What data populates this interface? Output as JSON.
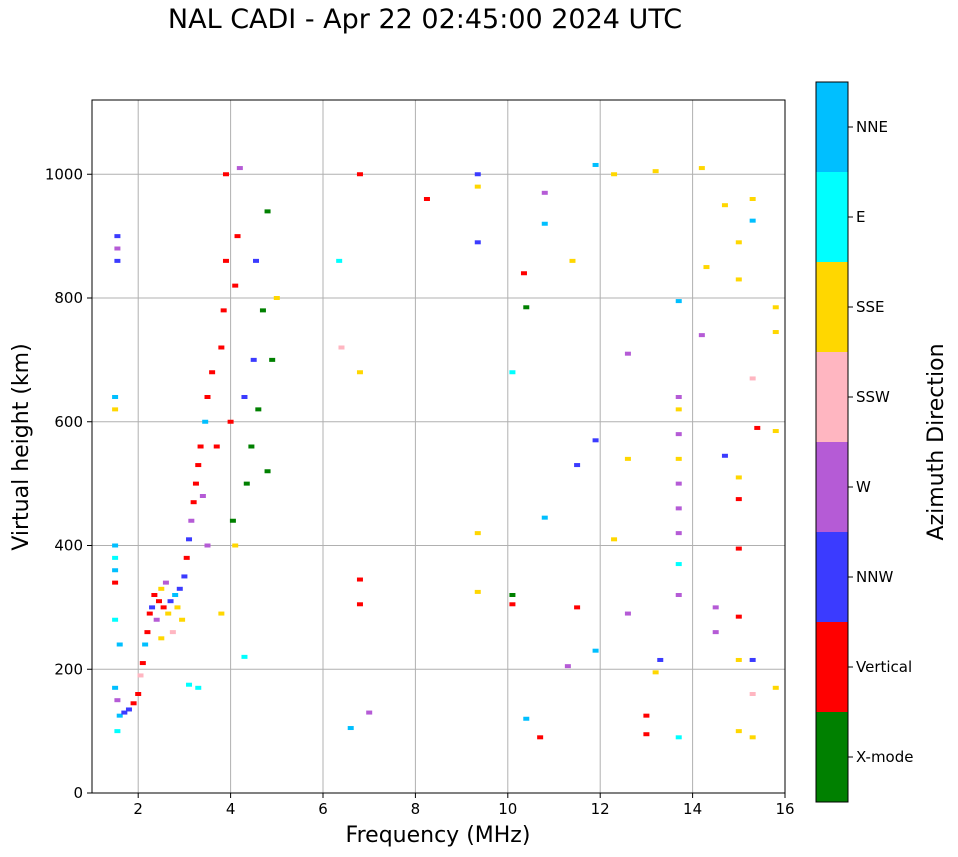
{
  "chart_data": {
    "type": "scatter",
    "title": "NAL CADI - Apr 22 02:45:00 2024 UTC",
    "xlabel": "Frequency (MHz)",
    "ylabel": "Virtual height (km)",
    "xlim": [
      1,
      16
    ],
    "ylim": [
      0,
      1120
    ],
    "xticks": [
      2,
      4,
      6,
      8,
      10,
      12,
      14,
      16
    ],
    "yticks": [
      0,
      200,
      400,
      600,
      800,
      1000
    ],
    "grid": true,
    "colorbar": {
      "label": "Azimuth Direction",
      "categories": [
        {
          "name": "X-mode",
          "color": "#008000"
        },
        {
          "name": "Vertical",
          "color": "#ff0000"
        },
        {
          "name": "NNW",
          "color": "#3b3bff"
        },
        {
          "name": "W",
          "color": "#b55bd6"
        },
        {
          "name": "SSW",
          "color": "#ffb6c1"
        },
        {
          "name": "SSE",
          "color": "#ffd700"
        },
        {
          "name": "E",
          "color": "#00ffff"
        },
        {
          "name": "NNE",
          "color": "#00bfff"
        }
      ]
    },
    "points": [
      {
        "f": 1.55,
        "h": 900,
        "c": "NNW"
      },
      {
        "f": 1.55,
        "h": 880,
        "c": "W"
      },
      {
        "f": 1.55,
        "h": 860,
        "c": "NNW"
      },
      {
        "f": 1.5,
        "h": 640,
        "c": "NNE"
      },
      {
        "f": 1.5,
        "h": 620,
        "c": "SSE"
      },
      {
        "f": 1.5,
        "h": 400,
        "c": "NNE"
      },
      {
        "f": 1.5,
        "h": 380,
        "c": "E"
      },
      {
        "f": 1.5,
        "h": 360,
        "c": "NNE"
      },
      {
        "f": 1.5,
        "h": 340,
        "c": "Vertical"
      },
      {
        "f": 1.5,
        "h": 280,
        "c": "E"
      },
      {
        "f": 1.6,
        "h": 240,
        "c": "NNE"
      },
      {
        "f": 1.5,
        "h": 170,
        "c": "NNE"
      },
      {
        "f": 1.55,
        "h": 150,
        "c": "W"
      },
      {
        "f": 1.6,
        "h": 125,
        "c": "NNE"
      },
      {
        "f": 1.7,
        "h": 130,
        "c": "NNW"
      },
      {
        "f": 1.8,
        "h": 135,
        "c": "NNW"
      },
      {
        "f": 1.9,
        "h": 145,
        "c": "Vertical"
      },
      {
        "f": 1.55,
        "h": 100,
        "c": "E"
      },
      {
        "f": 2.0,
        "h": 160,
        "c": "Vertical"
      },
      {
        "f": 2.05,
        "h": 190,
        "c": "SSW"
      },
      {
        "f": 2.1,
        "h": 210,
        "c": "Vertical"
      },
      {
        "f": 2.15,
        "h": 240,
        "c": "NNE"
      },
      {
        "f": 2.2,
        "h": 260,
        "c": "Vertical"
      },
      {
        "f": 2.25,
        "h": 290,
        "c": "Vertical"
      },
      {
        "f": 2.3,
        "h": 300,
        "c": "NNW"
      },
      {
        "f": 2.35,
        "h": 320,
        "c": "Vertical"
      },
      {
        "f": 2.4,
        "h": 280,
        "c": "W"
      },
      {
        "f": 2.45,
        "h": 310,
        "c": "Vertical"
      },
      {
        "f": 2.5,
        "h": 330,
        "c": "SSE"
      },
      {
        "f": 2.5,
        "h": 250,
        "c": "SSE"
      },
      {
        "f": 2.55,
        "h": 300,
        "c": "Vertical"
      },
      {
        "f": 2.6,
        "h": 340,
        "c": "W"
      },
      {
        "f": 2.65,
        "h": 290,
        "c": "SSE"
      },
      {
        "f": 2.7,
        "h": 310,
        "c": "NNW"
      },
      {
        "f": 2.75,
        "h": 260,
        "c": "SSW"
      },
      {
        "f": 2.8,
        "h": 320,
        "c": "NNE"
      },
      {
        "f": 2.85,
        "h": 300,
        "c": "SSE"
      },
      {
        "f": 2.9,
        "h": 330,
        "c": "NNW"
      },
      {
        "f": 2.95,
        "h": 280,
        "c": "SSE"
      },
      {
        "f": 3.0,
        "h": 350,
        "c": "NNW"
      },
      {
        "f": 3.05,
        "h": 380,
        "c": "Vertical"
      },
      {
        "f": 3.1,
        "h": 410,
        "c": "NNW"
      },
      {
        "f": 3.15,
        "h": 440,
        "c": "W"
      },
      {
        "f": 3.2,
        "h": 470,
        "c": "Vertical"
      },
      {
        "f": 3.25,
        "h": 500,
        "c": "Vertical"
      },
      {
        "f": 3.3,
        "h": 530,
        "c": "Vertical"
      },
      {
        "f": 3.35,
        "h": 560,
        "c": "Vertical"
      },
      {
        "f": 3.4,
        "h": 480,
        "c": "W"
      },
      {
        "f": 3.45,
        "h": 600,
        "c": "NNE"
      },
      {
        "f": 3.5,
        "h": 640,
        "c": "Vertical"
      },
      {
        "f": 3.5,
        "h": 400,
        "c": "W"
      },
      {
        "f": 3.6,
        "h": 680,
        "c": "Vertical"
      },
      {
        "f": 3.7,
        "h": 560,
        "c": "Vertical"
      },
      {
        "f": 3.8,
        "h": 720,
        "c": "Vertical"
      },
      {
        "f": 3.8,
        "h": 290,
        "c": "SSE"
      },
      {
        "f": 3.85,
        "h": 780,
        "c": "Vertical"
      },
      {
        "f": 3.9,
        "h": 860,
        "c": "Vertical"
      },
      {
        "f": 3.9,
        "h": 1000,
        "c": "Vertical"
      },
      {
        "f": 4.0,
        "h": 600,
        "c": "Vertical"
      },
      {
        "f": 4.05,
        "h": 440,
        "c": "X-mode"
      },
      {
        "f": 4.1,
        "h": 400,
        "c": "SSE"
      },
      {
        "f": 4.1,
        "h": 820,
        "c": "Vertical"
      },
      {
        "f": 4.15,
        "h": 900,
        "c": "Vertical"
      },
      {
        "f": 4.2,
        "h": 1010,
        "c": "W"
      },
      {
        "f": 4.3,
        "h": 640,
        "c": "NNW"
      },
      {
        "f": 4.35,
        "h": 500,
        "c": "X-mode"
      },
      {
        "f": 4.45,
        "h": 560,
        "c": "X-mode"
      },
      {
        "f": 4.5,
        "h": 700,
        "c": "NNW"
      },
      {
        "f": 4.55,
        "h": 860,
        "c": "NNW"
      },
      {
        "f": 4.6,
        "h": 620,
        "c": "X-mode"
      },
      {
        "f": 4.7,
        "h": 780,
        "c": "X-mode"
      },
      {
        "f": 4.8,
        "h": 520,
        "c": "X-mode"
      },
      {
        "f": 4.8,
        "h": 940,
        "c": "X-mode"
      },
      {
        "f": 4.9,
        "h": 700,
        "c": "X-mode"
      },
      {
        "f": 5.0,
        "h": 800,
        "c": "SSE"
      },
      {
        "f": 3.3,
        "h": 170,
        "c": "E"
      },
      {
        "f": 3.1,
        "h": 175,
        "c": "E"
      },
      {
        "f": 4.3,
        "h": 220,
        "c": "E"
      },
      {
        "f": 6.35,
        "h": 860,
        "c": "E"
      },
      {
        "f": 6.8,
        "h": 1000,
        "c": "Vertical"
      },
      {
        "f": 6.8,
        "h": 345,
        "c": "Vertical"
      },
      {
        "f": 6.8,
        "h": 305,
        "c": "Vertical"
      },
      {
        "f": 6.8,
        "h": 680,
        "c": "SSE"
      },
      {
        "f": 6.4,
        "h": 720,
        "c": "SSW"
      },
      {
        "f": 6.6,
        "h": 105,
        "c": "NNE"
      },
      {
        "f": 7.0,
        "h": 130,
        "c": "W"
      },
      {
        "f": 8.25,
        "h": 960,
        "c": "Vertical"
      },
      {
        "f": 9.35,
        "h": 1000,
        "c": "NNW"
      },
      {
        "f": 9.35,
        "h": 980,
        "c": "SSE"
      },
      {
        "f": 9.35,
        "h": 890,
        "c": "NNW"
      },
      {
        "f": 9.35,
        "h": 420,
        "c": "SSE"
      },
      {
        "f": 9.35,
        "h": 325,
        "c": "SSE"
      },
      {
        "f": 10.1,
        "h": 320,
        "c": "X-mode"
      },
      {
        "f": 10.1,
        "h": 305,
        "c": "Vertical"
      },
      {
        "f": 10.35,
        "h": 840,
        "c": "Vertical"
      },
      {
        "f": 10.4,
        "h": 785,
        "c": "X-mode"
      },
      {
        "f": 10.1,
        "h": 680,
        "c": "E"
      },
      {
        "f": 10.8,
        "h": 920,
        "c": "NNE"
      },
      {
        "f": 10.8,
        "h": 970,
        "c": "W"
      },
      {
        "f": 10.8,
        "h": 445,
        "c": "NNE"
      },
      {
        "f": 10.7,
        "h": 90,
        "c": "Vertical"
      },
      {
        "f": 10.4,
        "h": 120,
        "c": "NNE"
      },
      {
        "f": 11.4,
        "h": 860,
        "c": "SSE"
      },
      {
        "f": 11.5,
        "h": 530,
        "c": "NNW"
      },
      {
        "f": 11.5,
        "h": 300,
        "c": "Vertical"
      },
      {
        "f": 11.3,
        "h": 205,
        "c": "W"
      },
      {
        "f": 11.9,
        "h": 1015,
        "c": "NNE"
      },
      {
        "f": 11.9,
        "h": 570,
        "c": "NNW"
      },
      {
        "f": 11.9,
        "h": 230,
        "c": "NNE"
      },
      {
        "f": 12.3,
        "h": 1000,
        "c": "SSE"
      },
      {
        "f": 12.3,
        "h": 410,
        "c": "SSE"
      },
      {
        "f": 12.6,
        "h": 710,
        "c": "W"
      },
      {
        "f": 12.6,
        "h": 540,
        "c": "SSE"
      },
      {
        "f": 12.6,
        "h": 290,
        "c": "W"
      },
      {
        "f": 13.0,
        "h": 125,
        "c": "Vertical"
      },
      {
        "f": 13.0,
        "h": 95,
        "c": "Vertical"
      },
      {
        "f": 13.2,
        "h": 1005,
        "c": "SSE"
      },
      {
        "f": 13.3,
        "h": 215,
        "c": "NNW"
      },
      {
        "f": 13.2,
        "h": 195,
        "c": "SSE"
      },
      {
        "f": 13.7,
        "h": 795,
        "c": "NNE"
      },
      {
        "f": 13.7,
        "h": 640,
        "c": "W"
      },
      {
        "f": 13.7,
        "h": 620,
        "c": "SSE"
      },
      {
        "f": 13.7,
        "h": 580,
        "c": "W"
      },
      {
        "f": 13.7,
        "h": 540,
        "c": "SSE"
      },
      {
        "f": 13.7,
        "h": 500,
        "c": "W"
      },
      {
        "f": 13.7,
        "h": 460,
        "c": "W"
      },
      {
        "f": 13.7,
        "h": 420,
        "c": "W"
      },
      {
        "f": 13.7,
        "h": 370,
        "c": "E"
      },
      {
        "f": 13.7,
        "h": 320,
        "c": "W"
      },
      {
        "f": 13.7,
        "h": 90,
        "c": "E"
      },
      {
        "f": 14.2,
        "h": 1010,
        "c": "SSE"
      },
      {
        "f": 14.3,
        "h": 850,
        "c": "SSE"
      },
      {
        "f": 14.2,
        "h": 740,
        "c": "W"
      },
      {
        "f": 14.5,
        "h": 300,
        "c": "W"
      },
      {
        "f": 14.5,
        "h": 260,
        "c": "W"
      },
      {
        "f": 14.7,
        "h": 950,
        "c": "SSE"
      },
      {
        "f": 14.7,
        "h": 545,
        "c": "NNW"
      },
      {
        "f": 15.0,
        "h": 890,
        "c": "SSE"
      },
      {
        "f": 15.0,
        "h": 830,
        "c": "SSE"
      },
      {
        "f": 15.0,
        "h": 510,
        "c": "SSE"
      },
      {
        "f": 15.0,
        "h": 475,
        "c": "Vertical"
      },
      {
        "f": 15.0,
        "h": 395,
        "c": "Vertical"
      },
      {
        "f": 15.0,
        "h": 285,
        "c": "Vertical"
      },
      {
        "f": 15.0,
        "h": 215,
        "c": "SSE"
      },
      {
        "f": 15.0,
        "h": 100,
        "c": "SSE"
      },
      {
        "f": 15.3,
        "h": 960,
        "c": "SSE"
      },
      {
        "f": 15.3,
        "h": 925,
        "c": "NNE"
      },
      {
        "f": 15.3,
        "h": 215,
        "c": "NNW"
      },
      {
        "f": 15.3,
        "h": 90,
        "c": "SSE"
      },
      {
        "f": 15.4,
        "h": 590,
        "c": "Vertical"
      },
      {
        "f": 15.3,
        "h": 670,
        "c": "SSW"
      },
      {
        "f": 15.3,
        "h": 160,
        "c": "SSW"
      },
      {
        "f": 15.8,
        "h": 745,
        "c": "SSE"
      },
      {
        "f": 15.8,
        "h": 585,
        "c": "SSE"
      },
      {
        "f": 15.8,
        "h": 785,
        "c": "SSE"
      },
      {
        "f": 15.8,
        "h": 170,
        "c": "SSE"
      }
    ]
  }
}
